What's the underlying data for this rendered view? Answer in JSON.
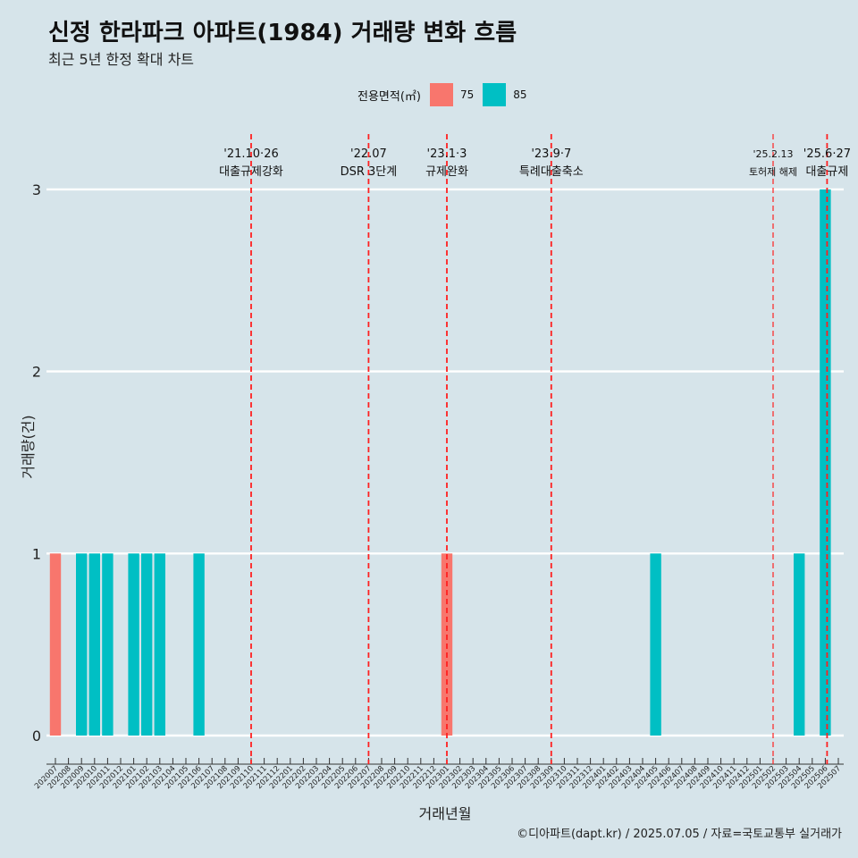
{
  "chart_data": {
    "type": "bar",
    "title": "신정 한라파크 아파트(1984) 거래량 변화 흐름",
    "subtitle": "최근 5년 한정 확대 차트",
    "xlabel": "거래년월",
    "ylabel": "거래량(건)",
    "caption": "©디아파트(dapt.kr) / 2025.07.05 / 자료=국토교통부 실거래가",
    "ylim": [
      0,
      3
    ],
    "yticks": [
      0,
      1,
      2,
      3
    ],
    "grid": true,
    "legend_position": "top",
    "legend_title": "전용면적(㎡)",
    "categories": [
      "202007",
      "202008",
      "202009",
      "202010",
      "202011",
      "202012",
      "202101",
      "202102",
      "202103",
      "202104",
      "202105",
      "202106",
      "202107",
      "202108",
      "202109",
      "202110",
      "202111",
      "202112",
      "202201",
      "202202",
      "202203",
      "202204",
      "202205",
      "202206",
      "202207",
      "202208",
      "202209",
      "202210",
      "202211",
      "202212",
      "202301",
      "202302",
      "202303",
      "202304",
      "202305",
      "202306",
      "202307",
      "202308",
      "202309",
      "202310",
      "202311",
      "202312",
      "202401",
      "202402",
      "202403",
      "202404",
      "202405",
      "202406",
      "202407",
      "202408",
      "202409",
      "202410",
      "202411",
      "202412",
      "202501",
      "202502",
      "202503",
      "202504",
      "202505",
      "202506",
      "202507"
    ],
    "series": [
      {
        "name": "75",
        "color": "#f8766d",
        "values": [
          1,
          0,
          0,
          0,
          0,
          0,
          0,
          0,
          0,
          0,
          0,
          0,
          0,
          0,
          0,
          0,
          0,
          0,
          0,
          0,
          0,
          0,
          0,
          0,
          0,
          0,
          0,
          0,
          0,
          0,
          1,
          0,
          0,
          0,
          0,
          0,
          0,
          0,
          0,
          0,
          0,
          0,
          0,
          0,
          0,
          0,
          0,
          0,
          0,
          0,
          0,
          0,
          0,
          0,
          0,
          0,
          0,
          0,
          0,
          0,
          0
        ]
      },
      {
        "name": "85",
        "color": "#00bfc4",
        "values": [
          0,
          0,
          1,
          1,
          1,
          0,
          1,
          1,
          1,
          0,
          0,
          1,
          0,
          0,
          0,
          0,
          0,
          0,
          0,
          0,
          0,
          0,
          0,
          0,
          0,
          0,
          0,
          0,
          0,
          0,
          0,
          0,
          0,
          0,
          0,
          0,
          0,
          0,
          0,
          0,
          0,
          0,
          0,
          0,
          0,
          0,
          1,
          0,
          0,
          0,
          0,
          0,
          0,
          0,
          0,
          0,
          0,
          1,
          0,
          3,
          0
        ]
      }
    ],
    "annotations": [
      {
        "x": "202110",
        "date": "'21.10·26",
        "text": "대출규제강화"
      },
      {
        "x": "202207",
        "date": "'22.07",
        "text": "DSR 3단계"
      },
      {
        "x": "202301",
        "date": "'23.1·3",
        "text": "규제완화"
      },
      {
        "x": "202309",
        "date": "'23.9·7",
        "text": "특례대출축소"
      },
      {
        "x": "202502",
        "date": "'25.2.13",
        "text": "토허제 해제"
      },
      {
        "x": "202506",
        "date": "'25.6·27",
        "text": "대출규제"
      }
    ]
  }
}
